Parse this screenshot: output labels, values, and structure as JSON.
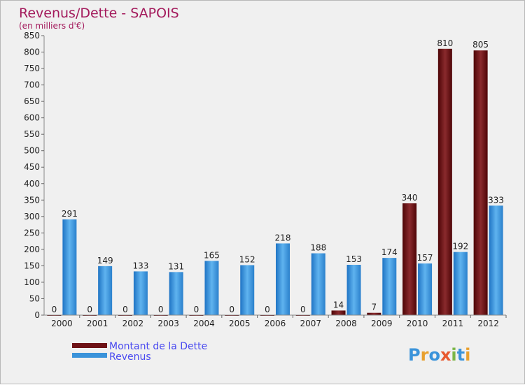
{
  "colors": {
    "background": "#f0f0f0",
    "title": "#a3195b",
    "debt": "#6e1216",
    "revenue": "#3a93da",
    "legend_text": "#4a4af0"
  },
  "brand": {
    "text": "Proxiti"
  },
  "chart_data": {
    "type": "bar",
    "title": "Revenus/Dette - SAPOIS",
    "subtitle": "(en milliers d'€)",
    "xlabel": "",
    "ylabel": "",
    "ylim": [
      0,
      850
    ],
    "yticks": [
      0,
      50,
      100,
      150,
      200,
      250,
      300,
      350,
      400,
      450,
      500,
      550,
      600,
      650,
      700,
      750,
      800,
      850
    ],
    "categories": [
      "2000",
      "2001",
      "2002",
      "2003",
      "2004",
      "2005",
      "2006",
      "2007",
      "2008",
      "2009",
      "2010",
      "2011",
      "2012"
    ],
    "series": [
      {
        "name": "Montant de la Dette",
        "values": [
          0,
          0,
          0,
          0,
          0,
          0,
          0,
          0,
          14,
          7,
          340,
          810,
          805
        ]
      },
      {
        "name": "Revenus",
        "values": [
          291,
          149,
          133,
          131,
          165,
          152,
          218,
          188,
          153,
          174,
          157,
          192,
          333
        ]
      }
    ],
    "legend_position": "bottom-left"
  }
}
